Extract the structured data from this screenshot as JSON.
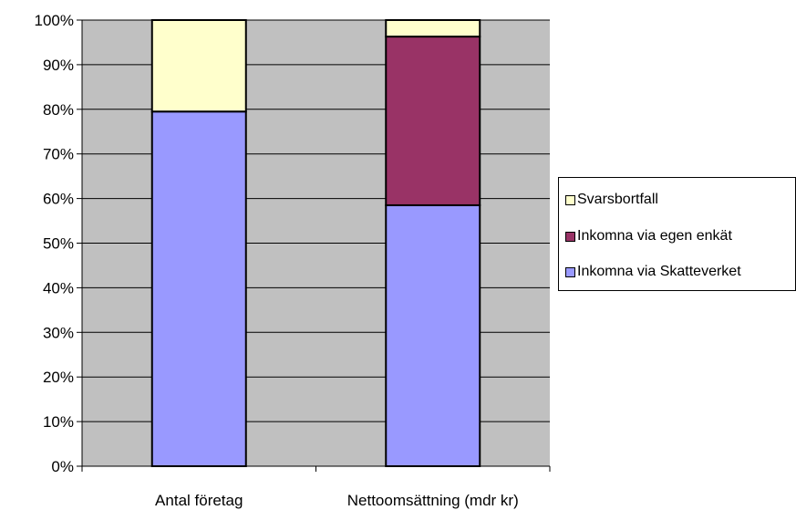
{
  "chart_data": {
    "type": "bar",
    "stacked": true,
    "percent": true,
    "categories": [
      "Antal företag",
      "Nettoomsättning (mdr kr)"
    ],
    "series": [
      {
        "name": "Inkomna via Skatteverket",
        "values": [
          79.5,
          58.5
        ],
        "color": "#9999ff"
      },
      {
        "name": "Inkomna via egen enkät",
        "values": [
          0,
          37.8
        ],
        "color": "#993366"
      },
      {
        "name": "Svarsbortfall",
        "values": [
          20.5,
          3.7
        ],
        "color": "#ffffcc"
      }
    ],
    "ylim": [
      0,
      100
    ],
    "yticks": [
      "0%",
      "10%",
      "20%",
      "30%",
      "40%",
      "50%",
      "60%",
      "70%",
      "80%",
      "90%",
      "100%"
    ],
    "grid": true,
    "plot_background": "#c0c0c0",
    "legend": {
      "position": "right",
      "items": [
        "Svarsbortfall",
        "Inkomna via egen enkät",
        "Inkomna via Skatteverket"
      ]
    }
  }
}
